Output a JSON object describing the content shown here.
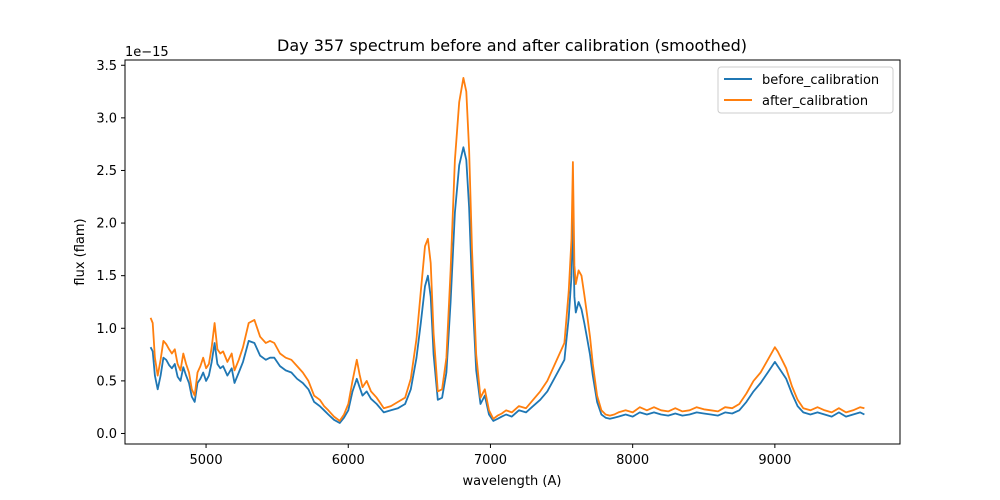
{
  "chart_data": {
    "type": "line",
    "title": "Day 357 spectrum before and after calibration (smoothed)",
    "xlabel": "wavelength (A)",
    "ylabel": "flux (flam)",
    "y_offset_label": "1e−15",
    "xlim": [
      4430,
      9880
    ],
    "ylim": [
      -0.1,
      3.55
    ],
    "xticks": [
      5000,
      6000,
      7000,
      8000,
      9000
    ],
    "xtick_labels": [
      "5000",
      "6000",
      "7000",
      "8000",
      "9000"
    ],
    "yticks": [
      0.0,
      0.5,
      1.0,
      1.5,
      2.0,
      2.5,
      3.0,
      3.5
    ],
    "ytick_labels": [
      "0.0",
      "0.5",
      "1.0",
      "1.5",
      "2.0",
      "2.5",
      "3.0",
      "3.5"
    ],
    "legend_position": "top-right",
    "series": [
      {
        "name": "before_calibration",
        "color": "#1f77b4",
        "x": [
          4610,
          4625,
          4640,
          4660,
          4680,
          4700,
          4720,
          4740,
          4760,
          4780,
          4800,
          4820,
          4840,
          4860,
          4880,
          4900,
          4920,
          4940,
          4960,
          4980,
          5000,
          5020,
          5040,
          5060,
          5080,
          5100,
          5120,
          5150,
          5180,
          5200,
          5230,
          5260,
          5300,
          5340,
          5380,
          5420,
          5450,
          5480,
          5520,
          5560,
          5600,
          5640,
          5680,
          5720,
          5760,
          5800,
          5830,
          5860,
          5900,
          5940,
          5970,
          6000,
          6030,
          6060,
          6080,
          6100,
          6130,
          6160,
          6200,
          6250,
          6300,
          6350,
          6400,
          6440,
          6480,
          6510,
          6540,
          6560,
          6580,
          6600,
          6630,
          6660,
          6690,
          6720,
          6750,
          6780,
          6810,
          6830,
          6850,
          6870,
          6900,
          6930,
          6960,
          6990,
          7020,
          7050,
          7080,
          7110,
          7150,
          7200,
          7250,
          7300,
          7350,
          7400,
          7440,
          7480,
          7520,
          7550,
          7570,
          7580,
          7590,
          7600,
          7620,
          7640,
          7660,
          7680,
          7700,
          7720,
          7750,
          7780,
          7810,
          7840,
          7870,
          7900,
          7950,
          8000,
          8050,
          8100,
          8150,
          8200,
          8250,
          8300,
          8350,
          8400,
          8450,
          8500,
          8550,
          8600,
          8650,
          8700,
          8750,
          8800,
          8850,
          8900,
          8950,
          9000,
          9020,
          9050,
          9080,
          9120,
          9160,
          9200,
          9250,
          9300,
          9350,
          9400,
          9450,
          9500,
          9550,
          9600,
          9630
        ],
        "values": [
          0.82,
          0.78,
          0.55,
          0.42,
          0.55,
          0.72,
          0.7,
          0.65,
          0.62,
          0.66,
          0.54,
          0.5,
          0.63,
          0.55,
          0.48,
          0.35,
          0.3,
          0.48,
          0.52,
          0.58,
          0.5,
          0.55,
          0.68,
          0.86,
          0.66,
          0.62,
          0.64,
          0.55,
          0.62,
          0.48,
          0.58,
          0.68,
          0.88,
          0.86,
          0.74,
          0.7,
          0.72,
          0.72,
          0.64,
          0.6,
          0.58,
          0.52,
          0.48,
          0.42,
          0.3,
          0.26,
          0.22,
          0.18,
          0.13,
          0.1,
          0.15,
          0.22,
          0.4,
          0.52,
          0.44,
          0.36,
          0.4,
          0.33,
          0.28,
          0.2,
          0.22,
          0.24,
          0.28,
          0.42,
          0.72,
          1.05,
          1.4,
          1.5,
          1.3,
          0.75,
          0.32,
          0.34,
          0.58,
          1.25,
          2.1,
          2.55,
          2.72,
          2.6,
          2.15,
          1.4,
          0.6,
          0.28,
          0.36,
          0.18,
          0.12,
          0.14,
          0.16,
          0.18,
          0.16,
          0.22,
          0.2,
          0.26,
          0.32,
          0.4,
          0.5,
          0.6,
          0.7,
          1.1,
          1.5,
          2.05,
          1.3,
          1.15,
          1.25,
          1.18,
          1.05,
          0.9,
          0.75,
          0.55,
          0.3,
          0.18,
          0.15,
          0.14,
          0.15,
          0.16,
          0.18,
          0.16,
          0.2,
          0.18,
          0.2,
          0.18,
          0.17,
          0.19,
          0.17,
          0.18,
          0.2,
          0.19,
          0.18,
          0.17,
          0.2,
          0.19,
          0.22,
          0.3,
          0.4,
          0.48,
          0.58,
          0.68,
          0.64,
          0.58,
          0.52,
          0.38,
          0.26,
          0.2,
          0.18,
          0.2,
          0.18,
          0.16,
          0.2,
          0.16,
          0.18,
          0.2,
          0.18
        ]
      },
      {
        "name": "after_calibration",
        "color": "#ff7f0e",
        "x": [
          4610,
          4625,
          4640,
          4660,
          4680,
          4700,
          4720,
          4740,
          4760,
          4780,
          4800,
          4820,
          4840,
          4860,
          4880,
          4900,
          4920,
          4940,
          4960,
          4980,
          5000,
          5020,
          5040,
          5060,
          5080,
          5100,
          5120,
          5150,
          5180,
          5200,
          5230,
          5260,
          5300,
          5340,
          5380,
          5420,
          5450,
          5480,
          5520,
          5560,
          5600,
          5640,
          5680,
          5720,
          5760,
          5800,
          5830,
          5860,
          5900,
          5940,
          5970,
          6000,
          6030,
          6060,
          6080,
          6100,
          6130,
          6160,
          6200,
          6250,
          6300,
          6350,
          6400,
          6440,
          6480,
          6510,
          6540,
          6560,
          6580,
          6600,
          6630,
          6660,
          6690,
          6720,
          6750,
          6780,
          6810,
          6830,
          6850,
          6870,
          6900,
          6930,
          6960,
          6990,
          7020,
          7050,
          7080,
          7110,
          7150,
          7200,
          7250,
          7300,
          7350,
          7400,
          7440,
          7480,
          7520,
          7550,
          7570,
          7580,
          7590,
          7600,
          7620,
          7640,
          7660,
          7680,
          7700,
          7720,
          7750,
          7780,
          7810,
          7840,
          7870,
          7900,
          7950,
          8000,
          8050,
          8100,
          8150,
          8200,
          8250,
          8300,
          8350,
          8400,
          8450,
          8500,
          8550,
          8600,
          8650,
          8700,
          8750,
          8800,
          8850,
          8900,
          8950,
          9000,
          9020,
          9050,
          9080,
          9120,
          9160,
          9200,
          9250,
          9300,
          9350,
          9400,
          9450,
          9500,
          9550,
          9600,
          9630
        ],
        "values": [
          1.1,
          1.05,
          0.72,
          0.55,
          0.7,
          0.88,
          0.85,
          0.8,
          0.76,
          0.8,
          0.66,
          0.6,
          0.76,
          0.66,
          0.58,
          0.42,
          0.36,
          0.58,
          0.64,
          0.72,
          0.62,
          0.66,
          0.82,
          1.05,
          0.8,
          0.76,
          0.78,
          0.68,
          0.76,
          0.6,
          0.7,
          0.82,
          1.05,
          1.08,
          0.92,
          0.86,
          0.88,
          0.86,
          0.76,
          0.72,
          0.7,
          0.64,
          0.58,
          0.5,
          0.36,
          0.32,
          0.26,
          0.22,
          0.16,
          0.12,
          0.18,
          0.28,
          0.5,
          0.7,
          0.56,
          0.44,
          0.5,
          0.4,
          0.34,
          0.24,
          0.26,
          0.3,
          0.34,
          0.52,
          0.9,
          1.35,
          1.78,
          1.85,
          1.62,
          0.95,
          0.4,
          0.42,
          0.72,
          1.55,
          2.6,
          3.15,
          3.38,
          3.25,
          2.7,
          1.75,
          0.75,
          0.34,
          0.42,
          0.22,
          0.14,
          0.17,
          0.19,
          0.22,
          0.2,
          0.26,
          0.24,
          0.32,
          0.4,
          0.5,
          0.62,
          0.74,
          0.86,
          1.35,
          1.85,
          2.58,
          1.6,
          1.42,
          1.55,
          1.5,
          1.32,
          1.12,
          0.92,
          0.66,
          0.36,
          0.22,
          0.18,
          0.17,
          0.18,
          0.2,
          0.22,
          0.2,
          0.25,
          0.22,
          0.25,
          0.22,
          0.21,
          0.24,
          0.21,
          0.22,
          0.25,
          0.23,
          0.22,
          0.21,
          0.25,
          0.24,
          0.28,
          0.38,
          0.5,
          0.58,
          0.7,
          0.82,
          0.78,
          0.7,
          0.62,
          0.45,
          0.32,
          0.24,
          0.22,
          0.25,
          0.22,
          0.2,
          0.24,
          0.2,
          0.22,
          0.25,
          0.24
        ]
      }
    ]
  }
}
